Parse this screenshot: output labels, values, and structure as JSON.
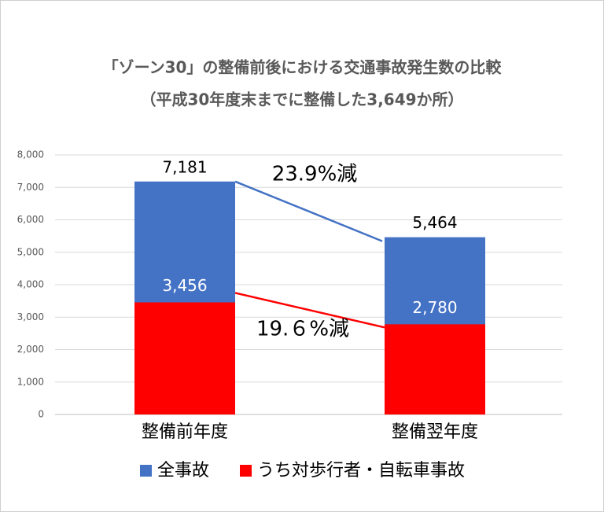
{
  "chart_data": {
    "type": "bar",
    "title": "「ゾーン30」の整備前後における交通事故発生数の比較",
    "subtitle": "（平成30年度末までに整備した3,649か所）",
    "categories": [
      "整備前年度",
      "整備翌年度"
    ],
    "series": [
      {
        "name": "全事故",
        "color": "#4472c4",
        "values": [
          7181,
          5464
        ],
        "value_labels": [
          "7,181",
          "5,464"
        ]
      },
      {
        "name": "うち対歩行者・自転車事故",
        "color": "#ff0000",
        "values": [
          3456,
          2780
        ],
        "value_labels": [
          "3,456",
          "2,780"
        ]
      }
    ],
    "annotations": [
      "23.9%減",
      "19.６%減"
    ],
    "ylim": [
      0,
      8000
    ],
    "yticks": [
      0,
      {
        "value": 1000,
        "label": "1,000"
      },
      {
        "value": 2000,
        "label": "2,000"
      },
      {
        "value": 3000,
        "label": "3,000"
      },
      {
        "value": 4000,
        "label": "4,000"
      },
      {
        "value": 5000,
        "label": "5,000"
      },
      {
        "value": 6000,
        "label": "6,000"
      },
      {
        "value": 7000,
        "label": "7,000"
      },
      {
        "value": 8000,
        "label": "8,000"
      }
    ],
    "grid": true
  }
}
